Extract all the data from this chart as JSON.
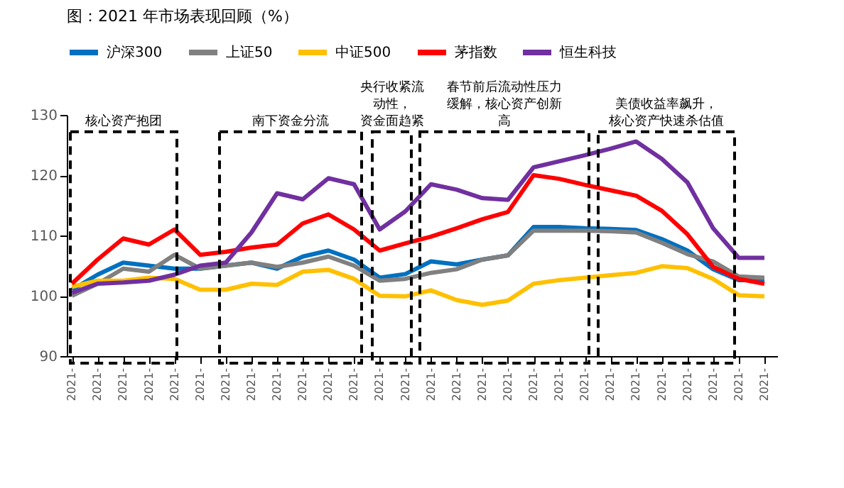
{
  "chart_data": {
    "type": "line",
    "title": "图：2021 年市场表现回顾（%）",
    "categories": [
      "2021-",
      "2021-",
      "2021-",
      "2021-",
      "2021-",
      "2021-",
      "2021-",
      "2021-",
      "2021-",
      "2021-",
      "2021-",
      "2021-",
      "2021-",
      "2021-",
      "2021-",
      "2021-",
      "2021-",
      "2021-",
      "2021-",
      "2021-",
      "2021-",
      "2021-",
      "2021-",
      "2021-",
      "2021-",
      "2021-",
      "2021-",
      "2021-"
    ],
    "series": [
      {
        "name": "沪深300",
        "color": "#0070c0",
        "values": [
          101,
          103.5,
          105.5,
          105,
          104.5,
          104.5,
          105,
          105.5,
          104.5,
          106.5,
          107.5,
          106,
          103,
          103.6,
          105.7,
          105.2,
          106,
          106.7,
          111.4,
          111.4,
          111.2,
          111.1,
          110.9,
          109.4,
          107.5,
          104.4,
          102.6,
          102.6
        ]
      },
      {
        "name": "上证50",
        "color": "#808080",
        "values": [
          100,
          102,
          104.5,
          104,
          106.8,
          104.5,
          105,
          105.5,
          104.8,
          105.5,
          106.5,
          105,
          102.5,
          102.8,
          103.8,
          104.4,
          106,
          106.7,
          110.8,
          110.8,
          110.8,
          110.7,
          110.5,
          108.8,
          106.9,
          105.7,
          103.2,
          103
        ]
      },
      {
        "name": "中证500",
        "color": "#ffc000",
        "values": [
          101.5,
          102.5,
          102.5,
          103,
          102.8,
          101,
          101,
          102,
          101.8,
          104,
          104.3,
          102.8,
          100,
          99.9,
          100.9,
          99.3,
          98.5,
          99.2,
          102,
          102.6,
          103,
          103.4,
          103.8,
          104.9,
          104.6,
          102.8,
          100.1,
          99.9
        ]
      },
      {
        "name": "茅指数",
        "color": "#ff0000",
        "values": [
          102,
          106,
          109.5,
          108.5,
          111,
          106.8,
          107.3,
          108,
          108.5,
          112,
          113.5,
          111,
          107.5,
          108.7,
          109.8,
          111.2,
          112.7,
          113.9,
          120,
          119.4,
          118.4,
          117.5,
          116.6,
          114.1,
          110.2,
          104.8,
          102.8,
          102
        ]
      },
      {
        "name": "恒生科技",
        "color": "#7030a0",
        "values": [
          100.5,
          102,
          102.2,
          102.5,
          103.5,
          105,
          105.5,
          110.5,
          117,
          116,
          119.5,
          118.5,
          111,
          114,
          118.5,
          117.6,
          116.2,
          115.9,
          121.3,
          122.3,
          123.3,
          124.4,
          125.6,
          122.7,
          118.8,
          111.2,
          106.3,
          106.3
        ]
      }
    ],
    "ylim": [
      90,
      130
    ],
    "yticks": [
      90,
      100,
      110,
      120,
      130
    ],
    "grid": false,
    "legend": "top",
    "line_style": "solid",
    "marker": "none",
    "annotations": [
      "核心资产抱团",
      "南下资金分流",
      "央行收紧流动性，资金面趋紧",
      "春节前后流动性压力缓解，核心资产创新高",
      "美债收益率飙升，核心资产快速杀估值"
    ]
  }
}
